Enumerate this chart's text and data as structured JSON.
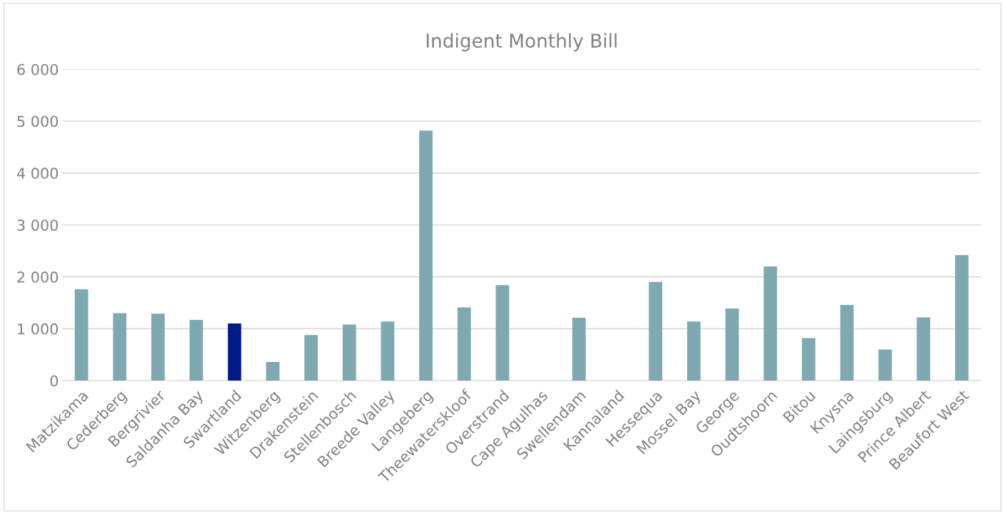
{
  "chart_data": {
    "type": "bar",
    "title": "Indigent Monthly Bill",
    "categories": [
      "Matzikama",
      "Cederberg",
      "Bergrivier",
      "Saldanha Bay",
      "Swartland",
      "Witzenberg",
      "Drakenstein",
      "Stellenbosch",
      "Breede Valley",
      "Langeberg",
      "Theewaterskloof",
      "Overstrand",
      "Cape Agulhas",
      "Swellendam",
      "Kannaland",
      "Hessequa",
      "Mossel Bay",
      "George",
      "Oudtshoorn",
      "Bitou",
      "Knysna",
      "Laingsburg",
      "Prince Albert",
      "Beaufort West"
    ],
    "values": [
      1760,
      1300,
      1290,
      1170,
      1100,
      360,
      880,
      1080,
      1140,
      4820,
      1410,
      1840,
      0,
      1210,
      0,
      1900,
      1140,
      1390,
      2200,
      820,
      1460,
      600,
      1220,
      2420
    ],
    "colors": [
      "#7fa9b0",
      "#7fa9b0",
      "#7fa9b0",
      "#7fa9b0",
      "#001a8c",
      "#7fa9b0",
      "#7fa9b0",
      "#7fa9b0",
      "#7fa9b0",
      "#7fa9b0",
      "#7fa9b0",
      "#7fa9b0",
      "#7fa9b0",
      "#7fa9b0",
      "#7fa9b0",
      "#7fa9b0",
      "#7fa9b0",
      "#7fa9b0",
      "#7fa9b0",
      "#7fa9b0",
      "#7fa9b0",
      "#7fa9b0",
      "#7fa9b0",
      "#7fa9b0"
    ],
    "ylim": [
      0,
      6000
    ],
    "yticks": [
      0,
      {
        "value": 1000,
        "label": "1 000"
      },
      {
        "value": 2000,
        "label": "2 000"
      },
      {
        "value": 3000,
        "label": "3 000"
      },
      {
        "value": 4000,
        "label": "4 000"
      },
      {
        "value": 5000,
        "label": "5 000"
      },
      {
        "value": 6000,
        "label": "6 000"
      }
    ],
    "grid": "y",
    "legend": false
  }
}
